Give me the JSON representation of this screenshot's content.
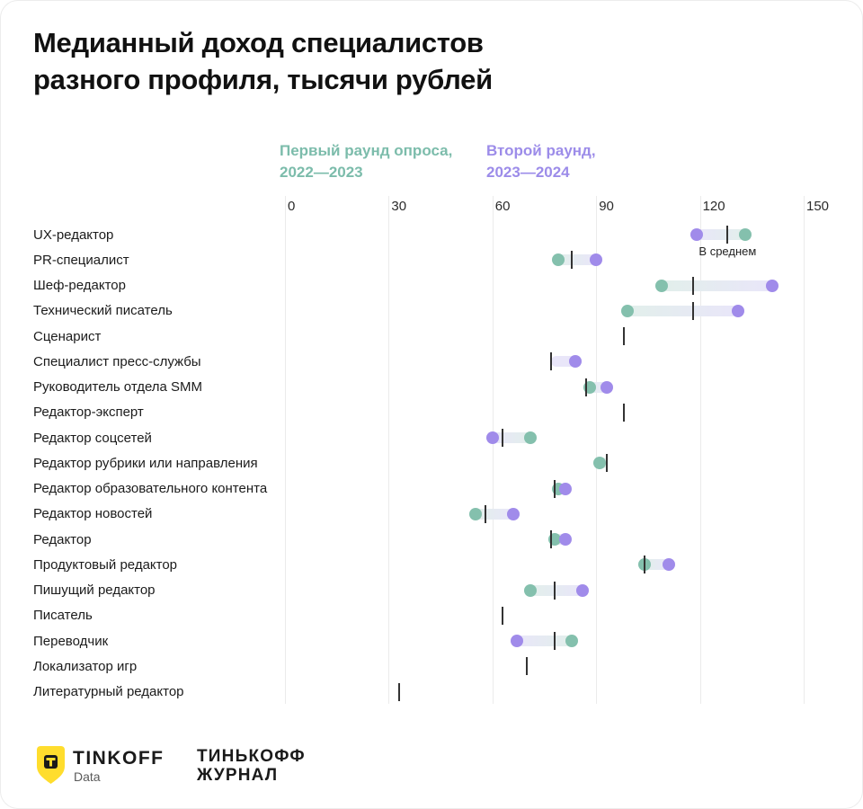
{
  "title": {
    "line1": "Медианный доход специалистов",
    "line2": "разного профиля, тысячи рублей"
  },
  "legend": {
    "round1": {
      "line1": "Первый раунд опроса,",
      "line2": "2022—2023",
      "color": "#7cbcab"
    },
    "round2": {
      "line1": "Второй раунд,",
      "line2": "2023—2024",
      "color": "#9c8ce9"
    }
  },
  "annotation_label": "В среднем",
  "chart_data": {
    "type": "dumbbell",
    "title": "Медианный доход специалистов разного профиля, тысячи рублей",
    "unit": "тысячи рублей",
    "xlim": [
      0,
      150
    ],
    "x_ticks": [
      0,
      30,
      60,
      90,
      120,
      150
    ],
    "grid": true,
    "legend_position": "top",
    "categories": [
      "UX-редактор",
      "PR-специалист",
      "Шеф-редактор",
      "Технический писатель",
      "Сценарист",
      "Специалист пресс-службы",
      "Руководитель отдела SMM",
      "Редактор-эксперт",
      "Редактор соцсетей",
      "Редактор рубрики или направления",
      "Редактор образовательного контента",
      "Редактор новостей",
      "Редактор",
      "Продуктовый редактор",
      "Пишущий редактор",
      "Писатель",
      "Переводчик",
      "Локализатор игр",
      "Литературный редактор"
    ],
    "series": [
      {
        "name": "Первый раунд опроса, 2022—2023",
        "marker": "dot",
        "color": "#84c0ad",
        "light_color": "#e2efeb",
        "values": [
          133,
          79,
          109,
          99,
          null,
          null,
          88,
          null,
          71,
          91,
          79,
          55,
          78,
          104,
          71,
          null,
          83,
          null,
          null
        ]
      },
      {
        "name": "Второй раунд, 2023—2024",
        "marker": "dot",
        "color": "#a08bea",
        "light_color": "#e9e6f9",
        "values": [
          119,
          90,
          141,
          131,
          null,
          84,
          93,
          null,
          60,
          null,
          81,
          66,
          81,
          111,
          86,
          null,
          67,
          null,
          null
        ]
      },
      {
        "name": "В среднем",
        "marker": "tick",
        "color": "#333333",
        "values": [
          128,
          83,
          118,
          118,
          98,
          77,
          87,
          98,
          63,
          93,
          78,
          58,
          77,
          104,
          78,
          63,
          78,
          70,
          33
        ]
      }
    ]
  },
  "footer": {
    "tinkoff": "TINKOFF",
    "data_label": "Data",
    "tj_line1": "ТИНЬКОФФ",
    "tj_line2": "ЖУРНАЛ"
  }
}
